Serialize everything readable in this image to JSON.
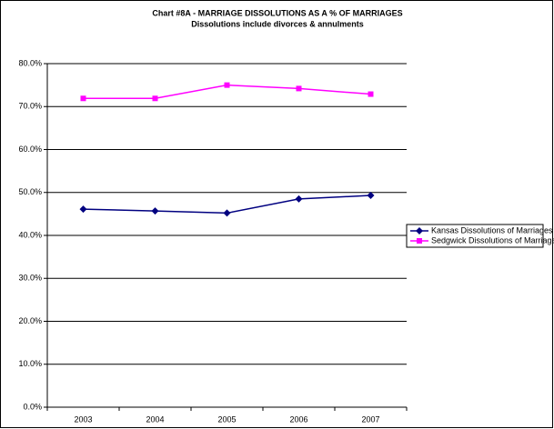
{
  "chart_data": {
    "type": "line",
    "title": "Chart #8A - MARRIAGE DISSOLUTIONS AS A % OF MARRIAGES",
    "subtitle": "Dissolutions include divorces & annulments",
    "categories": [
      "2003",
      "2004",
      "2005",
      "2006",
      "2007"
    ],
    "series": [
      {
        "name": "Kansas Dissolutions of Marriages",
        "color": "#000080",
        "marker": "diamond",
        "values": [
          46.1,
          45.7,
          45.2,
          48.5,
          49.3
        ]
      },
      {
        "name": "Sedgwick Dissolutions of Marriages",
        "color": "#ff00ff",
        "marker": "square",
        "values": [
          71.9,
          71.9,
          75.0,
          74.2,
          72.9
        ]
      }
    ],
    "ylim": [
      0,
      80
    ],
    "yticks": [
      {
        "value": 0,
        "label": "0.0%"
      },
      {
        "value": 10,
        "label": "10.0%"
      },
      {
        "value": 20,
        "label": "20.0%"
      },
      {
        "value": 30,
        "label": "30.0%"
      },
      {
        "value": 40,
        "label": "40.0%"
      },
      {
        "value": 50,
        "label": "50.0%"
      },
      {
        "value": 60,
        "label": "60.0%"
      },
      {
        "value": 70,
        "label": "70.0%"
      },
      {
        "value": 80,
        "label": "80.0%"
      }
    ],
    "grid": true,
    "legend": "right"
  }
}
